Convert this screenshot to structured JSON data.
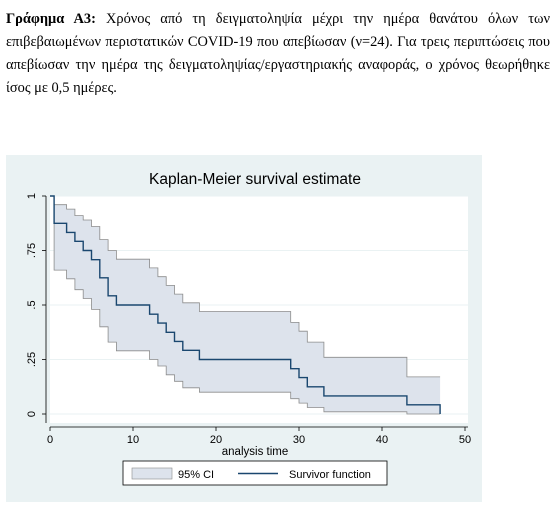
{
  "caption": {
    "label": "Γράφημα Α3:",
    "text": "Χρόνος από τη δειγματοληψία μέχρι την ημέρα θανάτου όλων των επιβεβαιωμένων περιστατικών COVID-19 που απεβίωσαν (ν=24). Για τρεις περιπτώσεις που απεβίωσαν την ημέρα της δειγματοληψίας/εργαστηριακής αναφοράς, ο χρόνος θεωρήθηκε ίσος με 0,5 ημέρες."
  },
  "chart_data": {
    "type": "line",
    "title": "Kaplan-Meier survival estimate",
    "xlabel": "analysis time",
    "ylabel": "",
    "xlim": [
      0,
      50
    ],
    "ylim": [
      0,
      1
    ],
    "xticks": [
      0,
      10,
      20,
      30,
      40,
      50
    ],
    "xtick_labels": [
      "0",
      "10",
      "20",
      "30",
      "40",
      "50"
    ],
    "yticks": [
      0,
      0.25,
      0.5,
      0.75,
      1
    ],
    "ytick_labels": [
      "0",
      ".25",
      ".5",
      ".75",
      "1"
    ],
    "grid": true,
    "legend": {
      "placement": "bottom",
      "entries": [
        "95% CI",
        "Survivor function"
      ]
    },
    "colors": {
      "survivor": "#1a476f",
      "ci_fill": "#dde3ec",
      "ci_line": "#8c8c8c",
      "background": "#eaf2f3",
      "plot_background": "#ffffff",
      "grid": "#eaf2f3"
    },
    "series": [
      {
        "name": "Survivor function",
        "x": [
          0,
          0.5,
          2,
          3,
          4,
          5,
          6,
          7,
          8,
          12,
          13,
          14,
          15,
          16,
          18,
          29,
          30,
          31,
          33,
          43,
          47
        ],
        "y": [
          1,
          0.875,
          0.833,
          0.792,
          0.75,
          0.708,
          0.625,
          0.542,
          0.5,
          0.458,
          0.417,
          0.375,
          0.333,
          0.292,
          0.25,
          0.208,
          0.167,
          0.125,
          0.083,
          0.042,
          0.0
        ]
      },
      {
        "name": "95% CI",
        "x": [
          0,
          0.5,
          2,
          3,
          4,
          5,
          6,
          7,
          8,
          12,
          13,
          14,
          15,
          16,
          18,
          29,
          30,
          31,
          33,
          43,
          47
        ],
        "upper": [
          1,
          0.96,
          0.94,
          0.91,
          0.89,
          0.86,
          0.8,
          0.75,
          0.71,
          0.67,
          0.63,
          0.59,
          0.55,
          0.51,
          0.47,
          0.42,
          0.38,
          0.33,
          0.26,
          0.17,
          0.17
        ],
        "lower": [
          1,
          0.66,
          0.62,
          0.57,
          0.53,
          0.48,
          0.4,
          0.33,
          0.29,
          0.25,
          0.22,
          0.18,
          0.15,
          0.12,
          0.1,
          0.07,
          0.05,
          0.03,
          0.01,
          0.0,
          0.0
        ]
      }
    ]
  }
}
